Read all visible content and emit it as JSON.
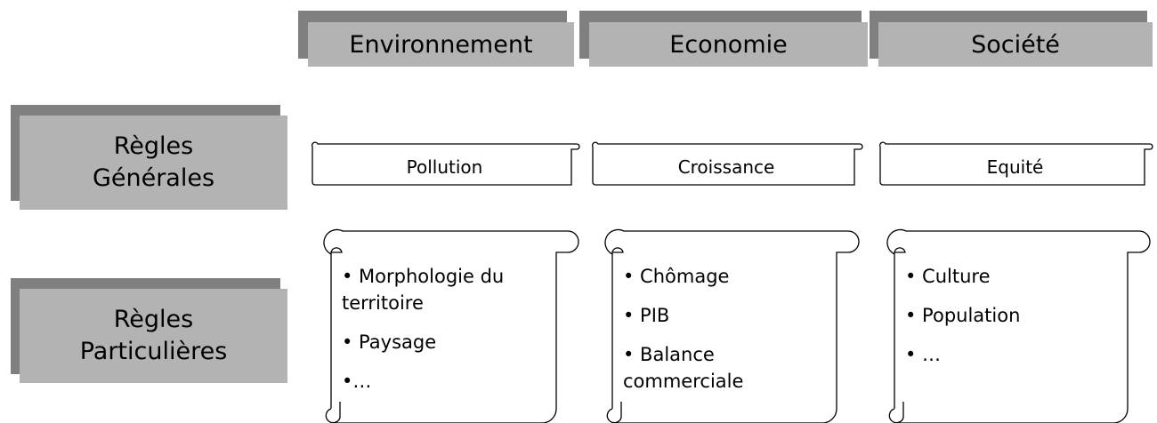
{
  "columns": [
    "Environnement",
    "Economie",
    "Société"
  ],
  "rows": [
    {
      "lines": [
        "Règles",
        "Générales"
      ]
    },
    {
      "lines": [
        "Règles",
        "Particulières"
      ]
    }
  ],
  "general": [
    "Pollution",
    "Croissance",
    "Equité"
  ],
  "particular": [
    [
      "• Morphologie du territoire",
      "• Paysage",
      "•…"
    ],
    [
      "• Chômage",
      "• PIB",
      "• Balance commerciale"
    ],
    [
      "• Culture",
      "• Population",
      "• …"
    ]
  ]
}
